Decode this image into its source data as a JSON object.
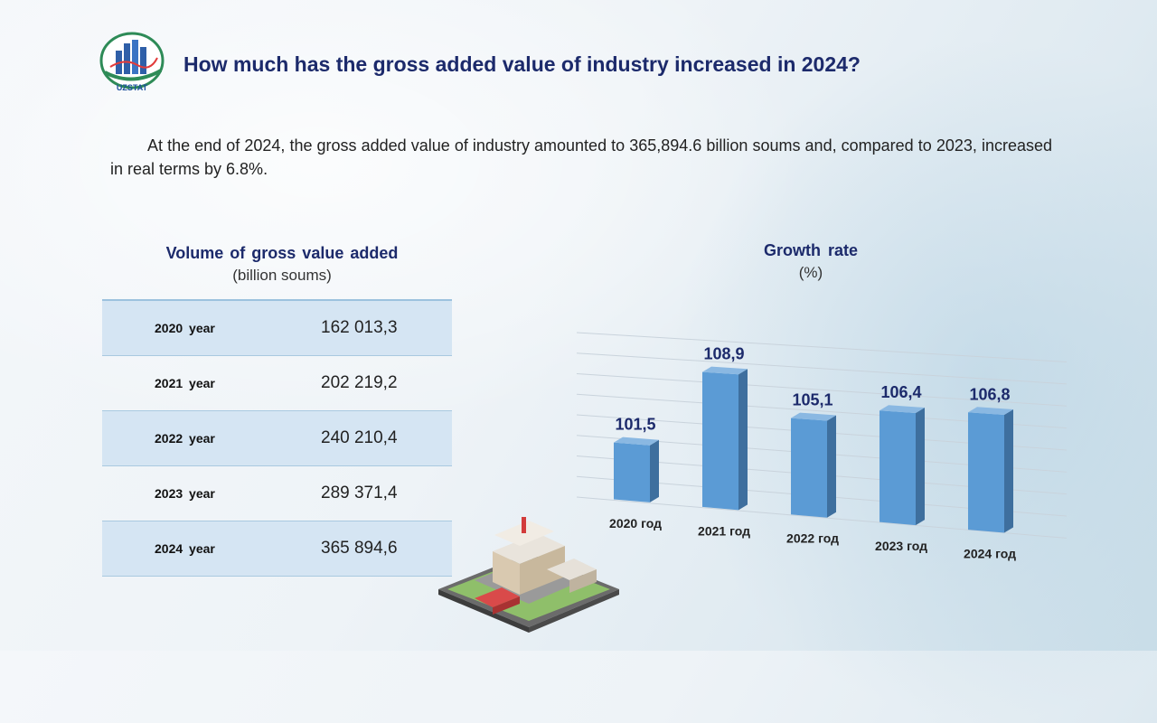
{
  "header": {
    "logo_text": "UZSTAT",
    "title": "How much has the gross added value of industry increased in 2024?"
  },
  "intro": "At the end of 2024, the gross added value of industry amounted to 365,894.6 billion soums and, compared to 2023, increased in real terms by 6.8%.",
  "table": {
    "title": "Volume of gross value added",
    "unit": "(billion soums)",
    "rows": [
      {
        "year": "2020  year",
        "value": "162 013,3"
      },
      {
        "year": "2021  year",
        "value": "202 219,2"
      },
      {
        "year": "2022  year",
        "value": "240 210,4"
      },
      {
        "year": "2023  year",
        "value": "289 371,4"
      },
      {
        "year": "2024  year",
        "value": "365 894,6"
      }
    ]
  },
  "chart_data": {
    "type": "bar",
    "title": "Growth  rate",
    "ylabel": "(%)",
    "categories": [
      "2020 год",
      "2021 год",
      "2022 год",
      "2023 год",
      "2024 год"
    ],
    "values": [
      101.5,
      108.9,
      105.1,
      106.4,
      106.8
    ],
    "value_labels": [
      "101,5",
      "108,9",
      "105,1",
      "106,4",
      "106,8"
    ],
    "ylim": [
      96,
      112
    ],
    "grid": true,
    "bar_color": "#5b9bd5"
  },
  "colors": {
    "title": "#1c2a6b",
    "table_shade": "#d5e5f3",
    "bar": "#5b9bd5"
  }
}
